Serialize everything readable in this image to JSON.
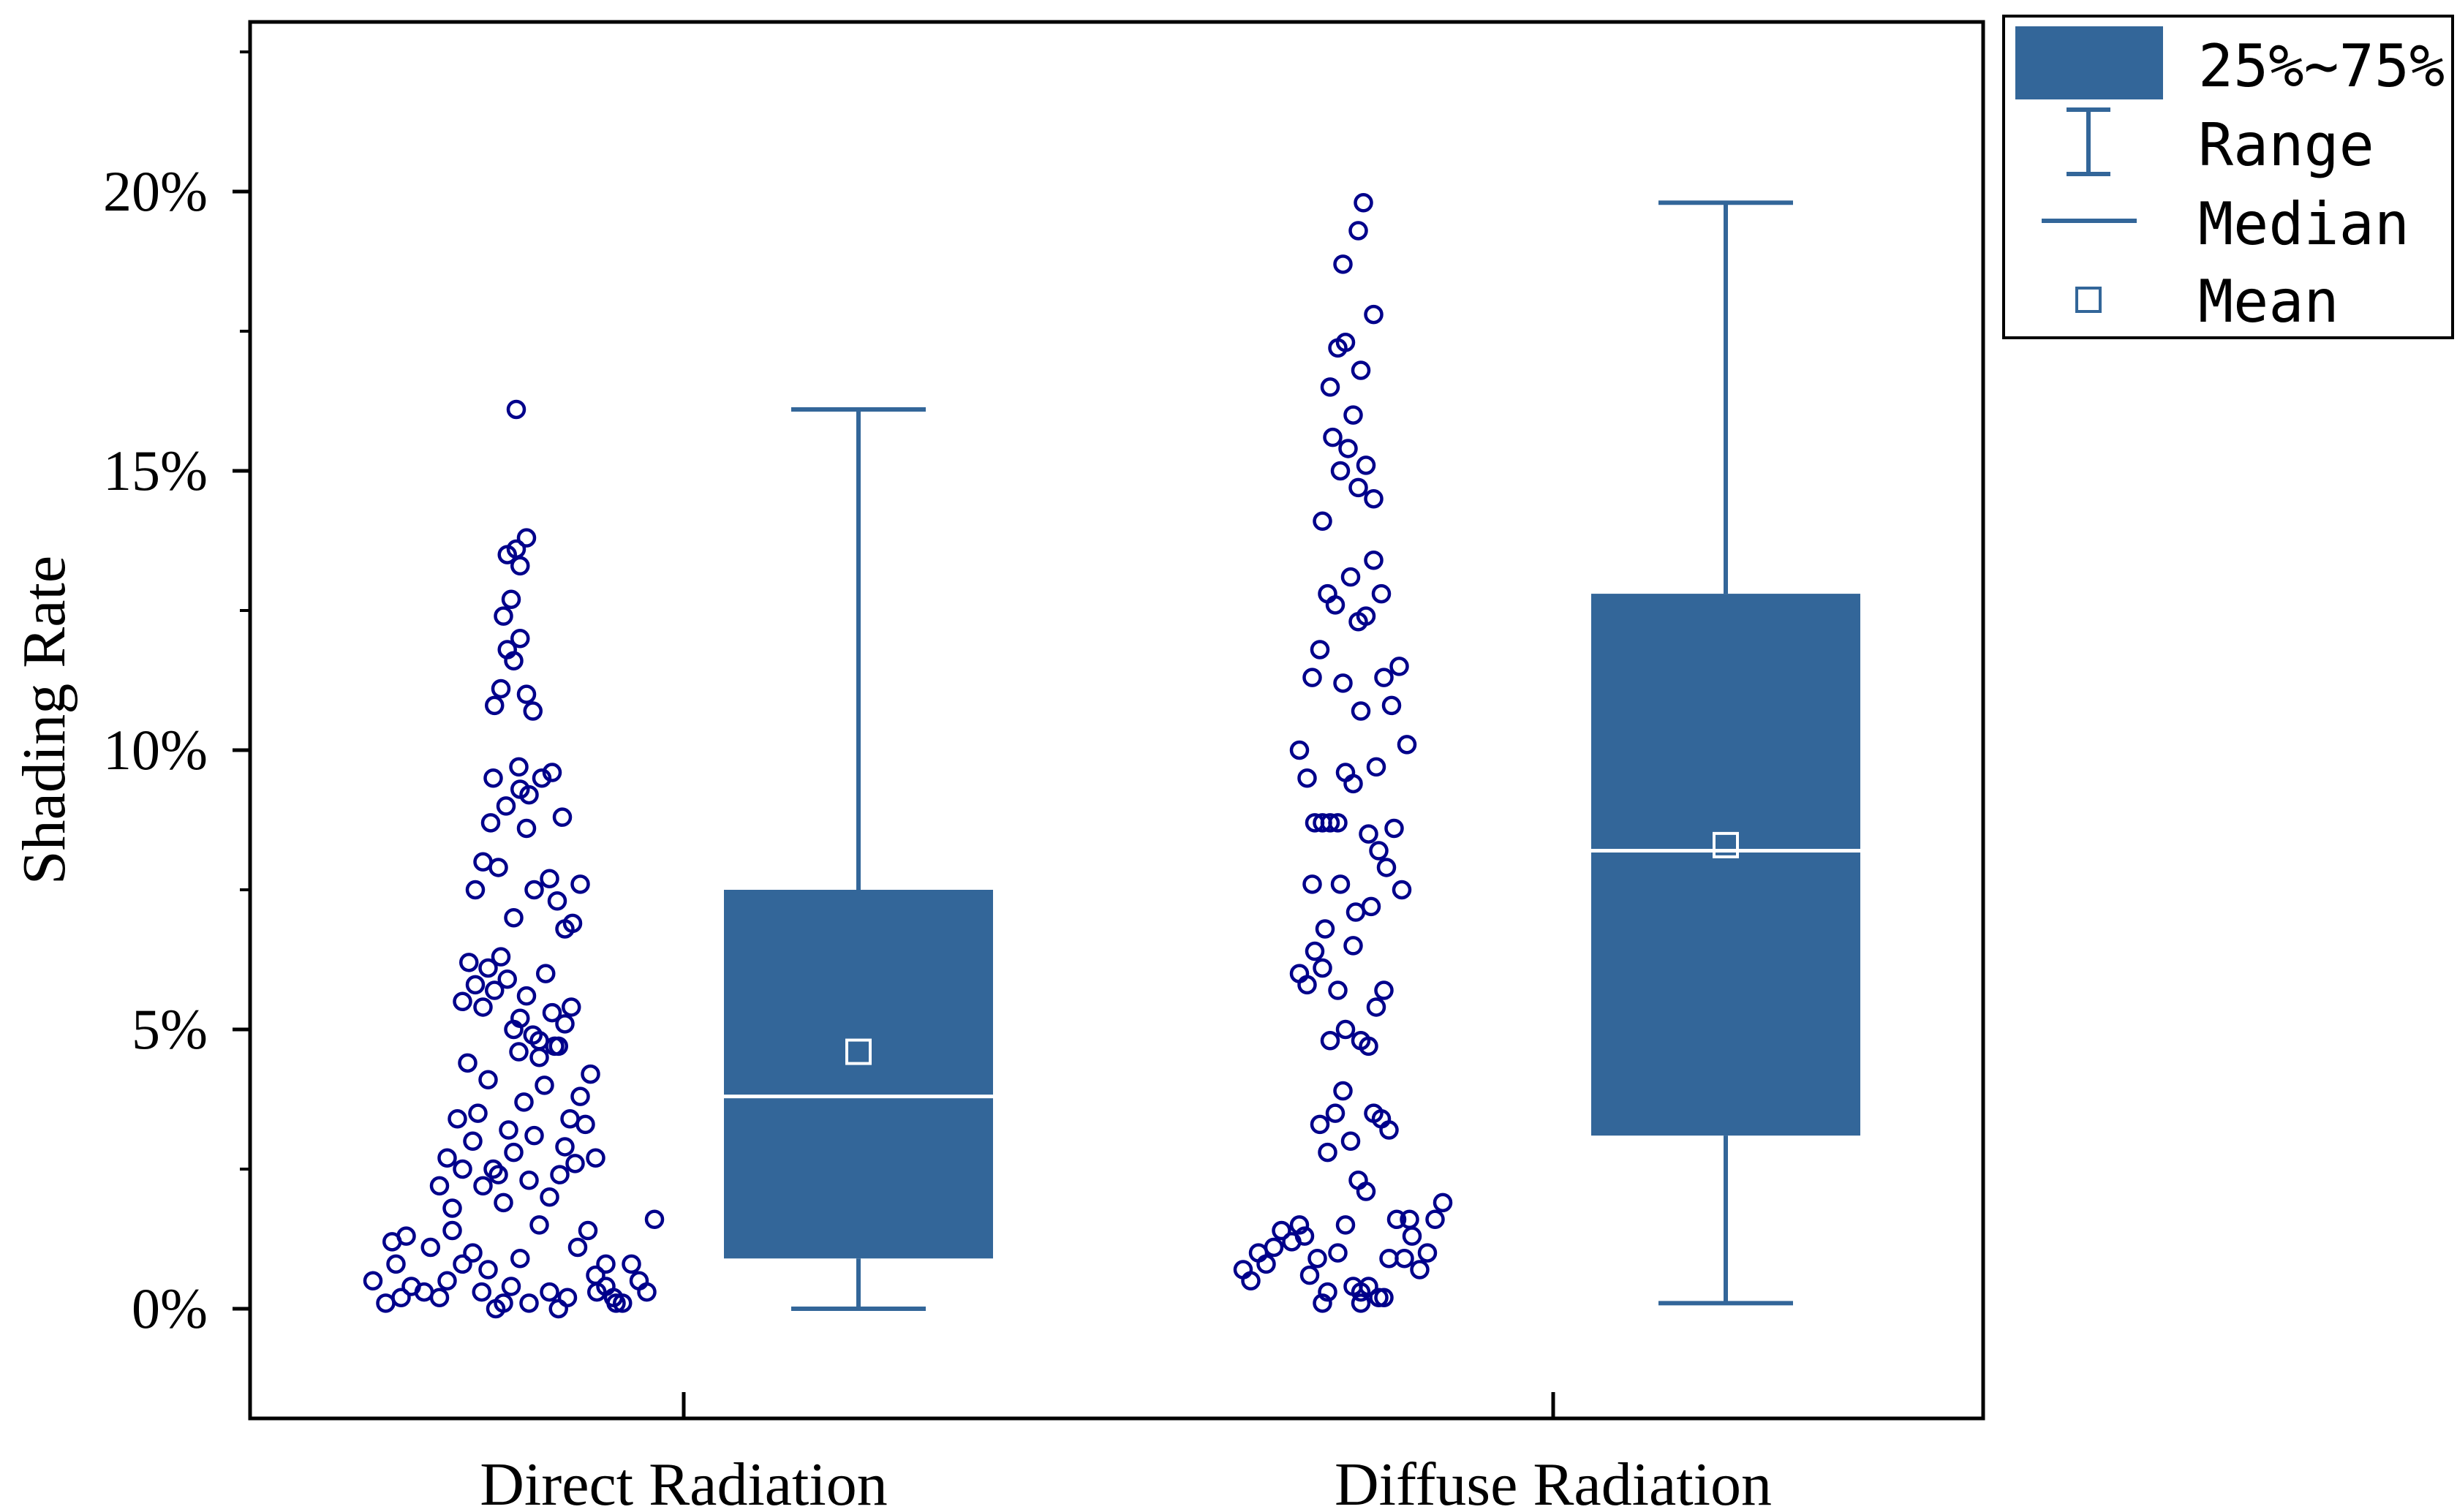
{
  "colors": {
    "box": "#336699",
    "whisker": "#336699",
    "points": "#00008B",
    "median": "#ffffff",
    "mean_marker": "#ffffff"
  },
  "chart_data": {
    "type": "box",
    "ylabel": "Shading Rate",
    "xlabel": "",
    "title": "",
    "ylim": [
      -0.012,
      0.23
    ],
    "yticks": [
      0,
      0.05,
      0.1,
      0.15,
      0.2
    ],
    "ytick_labels": [
      "0%",
      "5%",
      "10%",
      "15%",
      "20%"
    ],
    "categories": [
      "Direct Radiation",
      "Diffuse Radiation"
    ],
    "legend": {
      "placement": "top-right outside",
      "items": [
        {
          "label": "25%~75%",
          "icon": "box-swatch"
        },
        {
          "label": "Range",
          "icon": "range-whisker"
        },
        {
          "label": "Median",
          "icon": "median-line"
        },
        {
          "label": "Mean",
          "icon": "mean-square"
        }
      ]
    },
    "series": [
      {
        "category": "Direct Radiation",
        "q1": 0.009,
        "median": 0.038,
        "q3": 0.075,
        "mean": 0.046,
        "min": 0.0,
        "max": 0.161,
        "points": [
          [
            0.0,
            0.005
          ],
          [
            0.1,
            0.001
          ],
          [
            0.15,
            0.012
          ],
          [
            0.22,
            0.002
          ],
          [
            0.18,
            0.008
          ],
          [
            0.3,
            0.004
          ],
          [
            0.26,
            0.013
          ],
          [
            0.4,
            0.003
          ],
          [
            0.45,
            0.011
          ],
          [
            0.52,
            0.002
          ],
          [
            0.58,
            0.005
          ],
          [
            0.62,
            0.014
          ],
          [
            0.7,
            0.008
          ],
          [
            0.78,
            0.01
          ],
          [
            0.85,
            0.003
          ],
          [
            0.9,
            0.007
          ],
          [
            0.96,
            0.0
          ],
          [
            1.02,
            0.001
          ],
          [
            1.08,
            0.004
          ],
          [
            1.15,
            0.009
          ],
          [
            1.22,
            0.001
          ],
          [
            1.3,
            0.015
          ],
          [
            1.38,
            0.003
          ],
          [
            1.45,
            0.0
          ],
          [
            1.52,
            0.002
          ],
          [
            1.6,
            0.011
          ],
          [
            1.68,
            0.014
          ],
          [
            1.74,
            0.006
          ],
          [
            1.82,
            0.004
          ],
          [
            1.88,
            0.002
          ],
          [
            1.95,
            0.001
          ],
          [
            2.02,
            0.008
          ],
          [
            2.08,
            0.005
          ],
          [
            2.14,
            0.003
          ],
          [
            2.2,
            0.016
          ],
          [
            1.75,
            0.003
          ],
          [
            1.82,
            0.008
          ],
          [
            1.9,
            0.001
          ],
          [
            0.52,
            0.022
          ],
          [
            0.58,
            0.027
          ],
          [
            0.62,
            0.018
          ],
          [
            0.66,
            0.034
          ],
          [
            0.7,
            0.025
          ],
          [
            0.74,
            0.044
          ],
          [
            0.78,
            0.03
          ],
          [
            0.82,
            0.035
          ],
          [
            0.86,
            0.022
          ],
          [
            0.9,
            0.041
          ],
          [
            0.94,
            0.025
          ],
          [
            0.98,
            0.024
          ],
          [
            1.02,
            0.019
          ],
          [
            1.06,
            0.032
          ],
          [
            1.1,
            0.028
          ],
          [
            1.14,
            0.046
          ],
          [
            1.18,
            0.037
          ],
          [
            1.22,
            0.023
          ],
          [
            1.26,
            0.031
          ],
          [
            1.3,
            0.045
          ],
          [
            1.34,
            0.04
          ],
          [
            1.38,
            0.02
          ],
          [
            1.42,
            0.047
          ],
          [
            1.46,
            0.024
          ],
          [
            1.5,
            0.029
          ],
          [
            1.54,
            0.034
          ],
          [
            1.58,
            0.026
          ],
          [
            1.62,
            0.038
          ],
          [
            1.66,
            0.033
          ],
          [
            1.7,
            0.042
          ],
          [
            1.74,
            0.027
          ],
          [
            0.7,
            0.055
          ],
          [
            0.75,
            0.062
          ],
          [
            0.8,
            0.058
          ],
          [
            0.86,
            0.054
          ],
          [
            0.9,
            0.061
          ],
          [
            0.95,
            0.057
          ],
          [
            1.0,
            0.063
          ],
          [
            1.05,
            0.059
          ],
          [
            1.1,
            0.05
          ],
          [
            1.15,
            0.052
          ],
          [
            1.2,
            0.056
          ],
          [
            1.25,
            0.049
          ],
          [
            1.3,
            0.048
          ],
          [
            1.35,
            0.06
          ],
          [
            1.4,
            0.053
          ],
          [
            1.45,
            0.047
          ],
          [
            1.5,
            0.051
          ],
          [
            1.55,
            0.054
          ],
          [
            0.8,
            0.075
          ],
          [
            0.86,
            0.08
          ],
          [
            0.92,
            0.087
          ],
          [
            0.98,
            0.079
          ],
          [
            1.04,
            0.09
          ],
          [
            1.1,
            0.07
          ],
          [
            1.15,
            0.093
          ],
          [
            1.2,
            0.086
          ],
          [
            1.26,
            0.075
          ],
          [
            1.32,
            0.095
          ],
          [
            1.38,
            0.077
          ],
          [
            1.44,
            0.073
          ],
          [
            1.5,
            0.068
          ],
          [
            1.56,
            0.069
          ],
          [
            1.62,
            0.076
          ],
          [
            1.14,
            0.097
          ],
          [
            1.4,
            0.096
          ],
          [
            0.94,
            0.095
          ],
          [
            1.48,
            0.088
          ],
          [
            1.22,
            0.092
          ],
          [
            0.95,
            0.108
          ],
          [
            1.0,
            0.111
          ],
          [
            1.05,
            0.118
          ],
          [
            1.1,
            0.116
          ],
          [
            1.15,
            0.12
          ],
          [
            1.2,
            0.11
          ],
          [
            1.25,
            0.107
          ],
          [
            1.02,
            0.124
          ],
          [
            1.08,
            0.127
          ],
          [
            1.05,
            0.135
          ],
          [
            1.15,
            0.133
          ],
          [
            1.2,
            0.138
          ],
          [
            1.12,
            0.136
          ],
          [
            1.12,
            0.161
          ]
        ]
      },
      {
        "category": "Diffuse Radiation",
        "q1": 0.031,
        "median": 0.082,
        "q3": 0.128,
        "mean": 0.083,
        "min": 0.001,
        "max": 0.198,
        "points": [
          [
            0.0,
            0.007
          ],
          [
            0.06,
            0.005
          ],
          [
            0.12,
            0.01
          ],
          [
            0.18,
            0.008
          ],
          [
            0.24,
            0.011
          ],
          [
            0.3,
            0.014
          ],
          [
            0.38,
            0.012
          ],
          [
            0.44,
            0.015
          ],
          [
            0.52,
            0.006
          ],
          [
            0.58,
            0.009
          ],
          [
            0.66,
            0.003
          ],
          [
            0.74,
            0.01
          ],
          [
            0.8,
            0.015
          ],
          [
            0.86,
            0.004
          ],
          [
            0.92,
            0.003
          ],
          [
            0.98,
            0.004
          ],
          [
            1.06,
            0.002
          ],
          [
            1.14,
            0.009
          ],
          [
            1.2,
            0.016
          ],
          [
            1.26,
            0.009
          ],
          [
            1.32,
            0.013
          ],
          [
            1.38,
            0.007
          ],
          [
            1.44,
            0.01
          ],
          [
            1.5,
            0.016
          ],
          [
            1.56,
            0.019
          ],
          [
            0.92,
            0.001
          ],
          [
            0.62,
            0.001
          ],
          [
            1.1,
            0.002
          ],
          [
            1.3,
            0.016
          ],
          [
            0.48,
            0.013
          ],
          [
            0.6,
            0.033
          ],
          [
            0.66,
            0.028
          ],
          [
            0.72,
            0.035
          ],
          [
            0.78,
            0.039
          ],
          [
            0.84,
            0.03
          ],
          [
            0.9,
            0.023
          ],
          [
            0.96,
            0.021
          ],
          [
            1.02,
            0.035
          ],
          [
            1.08,
            0.034
          ],
          [
            1.14,
            0.032
          ],
          [
            0.44,
            0.06
          ],
          [
            0.5,
            0.058
          ],
          [
            0.56,
            0.064
          ],
          [
            0.62,
            0.061
          ],
          [
            0.68,
            0.048
          ],
          [
            0.74,
            0.057
          ],
          [
            0.8,
            0.05
          ],
          [
            0.86,
            0.065
          ],
          [
            0.92,
            0.048
          ],
          [
            0.98,
            0.047
          ],
          [
            1.04,
            0.054
          ],
          [
            1.1,
            0.057
          ],
          [
            0.64,
            0.068
          ],
          [
            0.76,
            0.076
          ],
          [
            0.88,
            0.071
          ],
          [
            1.0,
            0.072
          ],
          [
            1.06,
            0.082
          ],
          [
            1.12,
            0.079
          ],
          [
            1.18,
            0.086
          ],
          [
            1.24,
            0.075
          ],
          [
            0.54,
            0.076
          ],
          [
            0.44,
            0.1
          ],
          [
            0.5,
            0.095
          ],
          [
            0.56,
            0.087
          ],
          [
            0.62,
            0.087
          ],
          [
            0.68,
            0.087
          ],
          [
            0.74,
            0.087
          ],
          [
            0.8,
            0.096
          ],
          [
            0.86,
            0.094
          ],
          [
            0.92,
            0.107
          ],
          [
            0.98,
            0.085
          ],
          [
            1.04,
            0.097
          ],
          [
            1.1,
            0.113
          ],
          [
            1.16,
            0.108
          ],
          [
            1.22,
            0.115
          ],
          [
            1.28,
            0.101
          ],
          [
            0.54,
            0.113
          ],
          [
            0.6,
            0.118
          ],
          [
            0.66,
            0.128
          ],
          [
            0.72,
            0.126
          ],
          [
            0.78,
            0.112
          ],
          [
            0.84,
            0.131
          ],
          [
            0.9,
            0.123
          ],
          [
            0.96,
            0.124
          ],
          [
            1.02,
            0.134
          ],
          [
            1.08,
            0.128
          ],
          [
            0.62,
            0.141
          ],
          [
            0.7,
            0.156
          ],
          [
            0.76,
            0.15
          ],
          [
            0.82,
            0.154
          ],
          [
            0.9,
            0.147
          ],
          [
            0.96,
            0.151
          ],
          [
            1.02,
            0.145
          ],
          [
            0.68,
            0.165
          ],
          [
            0.74,
            0.172
          ],
          [
            0.8,
            0.173
          ],
          [
            0.86,
            0.16
          ],
          [
            0.92,
            0.168
          ],
          [
            0.78,
            0.187
          ],
          [
            0.9,
            0.193
          ],
          [
            1.02,
            0.178
          ],
          [
            0.94,
            0.198
          ]
        ]
      }
    ]
  }
}
